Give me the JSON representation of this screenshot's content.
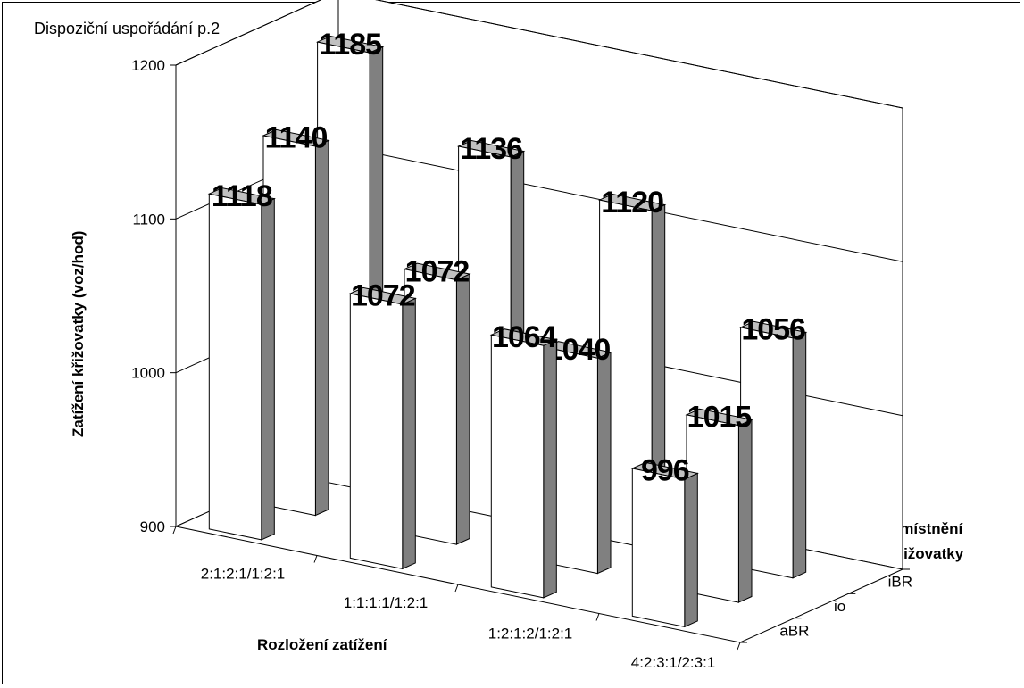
{
  "chart_data": {
    "type": "bar",
    "title": "Dispoziční uspořádání p.2",
    "xlabel": "Rozložení zatížení",
    "ylabel": "Zatížení křižovatky (voz/hod)",
    "zlabel_lines": [
      "Umístnění",
      "křižovatky"
    ],
    "categories": [
      "2:1:2:1/1:2:1",
      "1:1:1:1/1:2:1",
      "1:2:1:2/1:2:1",
      "4:2:3:1/2:3:1"
    ],
    "series": [
      {
        "name": "aBR",
        "values": [
          1118,
          1072,
          1064,
          996
        ]
      },
      {
        "name": "io",
        "values": [
          1140,
          1072,
          1040,
          1015
        ]
      },
      {
        "name": "iBR",
        "values": [
          1185,
          1136,
          1120,
          1056
        ]
      }
    ],
    "ylim": [
      900,
      1200
    ],
    "yticks": [
      "900",
      "1000",
      "1100",
      "1200"
    ],
    "grid": true,
    "colors": {
      "bar_face": "#ffffff",
      "bar_side": "#808080",
      "bar_top": "#c0c0c0"
    }
  }
}
